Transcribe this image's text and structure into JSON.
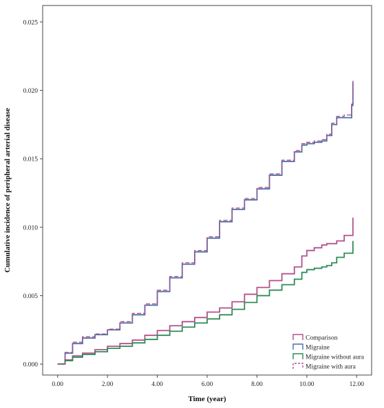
{
  "chart_data": {
    "type": "line",
    "title": "",
    "xlabel": "Time (year)",
    "ylabel": "Cumulative incidence of peripheral arterial disease",
    "xlim": [
      -0.6,
      12.6
    ],
    "ylim": [
      -0.0008,
      0.0262
    ],
    "x_ticks": [
      0,
      2,
      4,
      6,
      8,
      10,
      12
    ],
    "x_tick_labels": [
      "0.00",
      "2.00",
      "4.00",
      "6.00",
      "8.00",
      "10.00",
      "12.00"
    ],
    "y_ticks": [
      0,
      0.005,
      0.01,
      0.015,
      0.02,
      0.025
    ],
    "y_tick_labels": [
      "0.000",
      "0.005",
      "0.010",
      "0.015",
      "0.020",
      "0.025"
    ],
    "grid": false,
    "legend_position": "bottom-right",
    "step": true,
    "series": [
      {
        "name": "Comparison",
        "color": "#b0508a",
        "dash": "solid",
        "x": [
          0,
          0.3,
          0.6,
          1.0,
          1.5,
          2.0,
          2.5,
          3.0,
          3.5,
          4.0,
          4.5,
          5.0,
          5.5,
          6.0,
          6.5,
          7.0,
          7.5,
          8.0,
          8.5,
          9.0,
          9.5,
          9.8,
          10.0,
          10.3,
          10.6,
          10.8,
          11.0,
          11.2,
          11.5,
          11.8,
          11.85
        ],
        "y": [
          0,
          0.0003,
          0.0006,
          0.0008,
          0.00105,
          0.0013,
          0.0015,
          0.00175,
          0.0021,
          0.00245,
          0.0028,
          0.0031,
          0.0034,
          0.0038,
          0.0041,
          0.00455,
          0.0051,
          0.0056,
          0.0061,
          0.0066,
          0.0071,
          0.0079,
          0.0083,
          0.0085,
          0.0087,
          0.0088,
          0.0088,
          0.009,
          0.0094,
          0.0094,
          0.0107
        ]
      },
      {
        "name": "Migraine",
        "color": "#4a6fa5",
        "dash": "solid",
        "x": [
          0,
          0.3,
          0.6,
          1.0,
          1.5,
          2.0,
          2.5,
          3.0,
          3.5,
          4.0,
          4.5,
          5.0,
          5.5,
          6.0,
          6.5,
          7.0,
          7.5,
          8.0,
          8.5,
          9.0,
          9.5,
          9.8,
          10.0,
          10.3,
          10.6,
          10.8,
          11.0,
          11.2,
          11.5,
          11.8,
          11.85
        ],
        "y": [
          0,
          0.0008,
          0.0015,
          0.0019,
          0.00215,
          0.0025,
          0.003,
          0.0036,
          0.0043,
          0.0053,
          0.0063,
          0.0073,
          0.0082,
          0.0092,
          0.0104,
          0.0113,
          0.012,
          0.0128,
          0.0138,
          0.0148,
          0.0155,
          0.016,
          0.0161,
          0.0162,
          0.0163,
          0.0167,
          0.0175,
          0.018,
          0.018,
          0.0189,
          0.0206
        ]
      },
      {
        "name": "Migraine without aura",
        "color": "#2e8b57",
        "dash": "solid",
        "x": [
          0,
          0.3,
          0.6,
          1.0,
          1.5,
          2.0,
          2.5,
          3.0,
          3.5,
          4.0,
          4.5,
          5.0,
          5.5,
          6.0,
          6.5,
          7.0,
          7.5,
          8.0,
          8.5,
          9.0,
          9.5,
          9.8,
          10.0,
          10.3,
          10.6,
          10.8,
          11.0,
          11.2,
          11.5,
          11.8,
          11.85
        ],
        "y": [
          0,
          0.00025,
          0.0005,
          0.0007,
          0.0009,
          0.00115,
          0.0013,
          0.00155,
          0.0018,
          0.0021,
          0.0024,
          0.0027,
          0.003,
          0.0033,
          0.0036,
          0.004,
          0.0045,
          0.005,
          0.0054,
          0.0058,
          0.0062,
          0.0067,
          0.0069,
          0.007,
          0.0071,
          0.0072,
          0.0074,
          0.0078,
          0.0081,
          0.0081,
          0.009
        ]
      },
      {
        "name": "Migraine with aura",
        "color": "#b0508a",
        "dash": "dashed",
        "x": [
          0,
          0.3,
          0.6,
          1.0,
          1.5,
          2.0,
          2.5,
          3.0,
          3.5,
          4.0,
          4.5,
          5.0,
          5.5,
          6.0,
          6.5,
          7.0,
          7.5,
          8.0,
          8.5,
          9.0,
          9.5,
          9.8,
          10.0,
          10.3,
          10.6,
          10.8,
          11.0,
          11.2,
          11.5,
          11.8,
          11.85
        ],
        "y": [
          0,
          0.00085,
          0.0016,
          0.002,
          0.0022,
          0.00255,
          0.0031,
          0.0037,
          0.0044,
          0.0054,
          0.0064,
          0.0074,
          0.0083,
          0.0093,
          0.0105,
          0.0114,
          0.0121,
          0.0129,
          0.0139,
          0.0149,
          0.0156,
          0.0161,
          0.0162,
          0.0163,
          0.0164,
          0.0168,
          0.0176,
          0.0181,
          0.0182,
          0.019,
          0.0207
        ]
      }
    ]
  }
}
